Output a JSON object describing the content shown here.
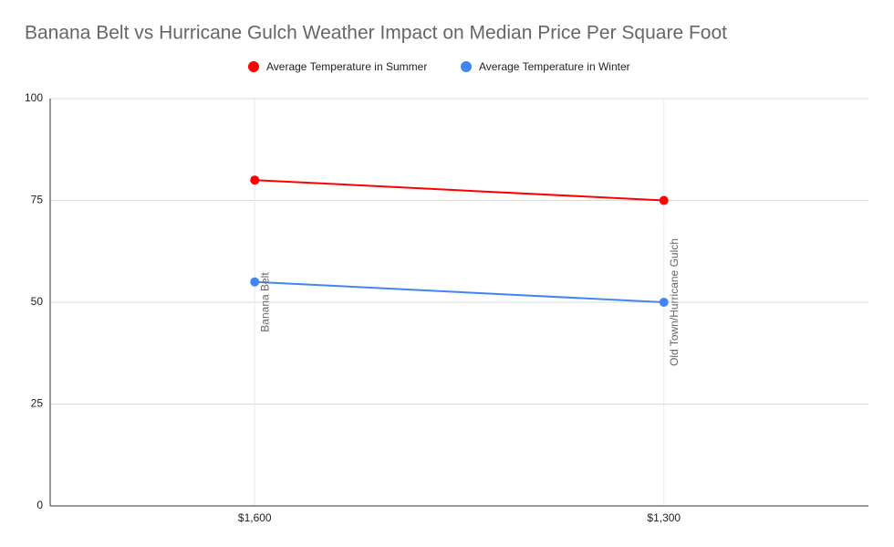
{
  "chart_data": {
    "type": "line",
    "title": "Banana Belt vs Hurricane Gulch Weather Impact on Median Price Per Square Foot",
    "categories": [
      "$1,600",
      "$1,300"
    ],
    "annotations": [
      "Banana Belt",
      "Old Town/Hurricane Gulch"
    ],
    "series": [
      {
        "name": "Average Temperature in Summer",
        "color": "#ff0000",
        "values": [
          80,
          75
        ]
      },
      {
        "name": "Average Temperature in Winter",
        "color": "#4285f4",
        "values": [
          55,
          50
        ]
      }
    ],
    "ylim": [
      0,
      100
    ],
    "yticks": [
      0,
      25,
      50,
      75,
      100
    ],
    "grid": true,
    "legend": "top"
  }
}
